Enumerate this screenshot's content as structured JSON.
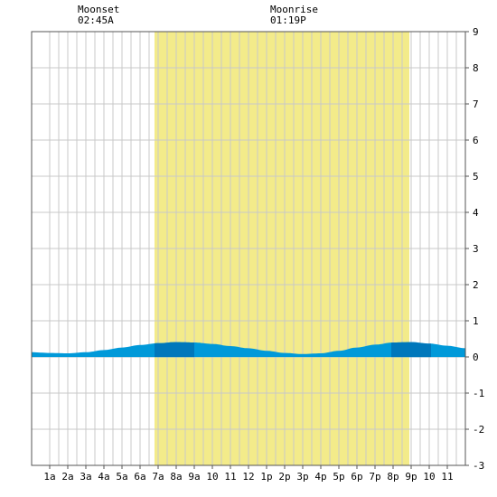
{
  "moon_events": [
    {
      "label": "Moonset",
      "time": "02:45A",
      "hour": 2.75
    },
    {
      "label": "Moonrise",
      "time": "01:19P",
      "hour": 13.3167
    }
  ],
  "chart_data": {
    "type": "area",
    "title": "",
    "xlabel": "",
    "ylabel": "",
    "xlim": [
      -1,
      23
    ],
    "ylim": [
      -3,
      9
    ],
    "x_tick_labels": [
      "1a",
      "2a",
      "3a",
      "4a",
      "5a",
      "6a",
      "7a",
      "8a",
      "9a",
      "10",
      "11",
      "12",
      "1p",
      "2p",
      "3p",
      "4p",
      "5p",
      "6p",
      "7p",
      "8p",
      "9p",
      "10",
      "11"
    ],
    "y_tick_labels": [
      "-3",
      "-2",
      "-1",
      "0",
      "1",
      "2",
      "3",
      "4",
      "5",
      "6",
      "7",
      "8",
      "9"
    ],
    "daylight": {
      "start_hour": 5.8,
      "end_hour": 19.9,
      "color": "#f3eb8a"
    },
    "night_color": "#ffffff",
    "grid": true,
    "tide_color": "#0099d9",
    "tide_dark_color": "#0077bb",
    "series": [
      {
        "x": [
          -1,
          0,
          1,
          2,
          3,
          4,
          5,
          6,
          7,
          8,
          9,
          10,
          11,
          12,
          13,
          14,
          15,
          16,
          17,
          18,
          19,
          20,
          21,
          22,
          23
        ],
        "y": [
          0.13,
          0.11,
          0.1,
          0.13,
          0.19,
          0.26,
          0.33,
          0.38,
          0.41,
          0.4,
          0.36,
          0.3,
          0.24,
          0.17,
          0.11,
          0.08,
          0.1,
          0.17,
          0.26,
          0.34,
          0.4,
          0.41,
          0.37,
          0.31,
          0.24
        ]
      }
    ],
    "high_tide_hours": [
      7.3,
      20.4
    ]
  }
}
